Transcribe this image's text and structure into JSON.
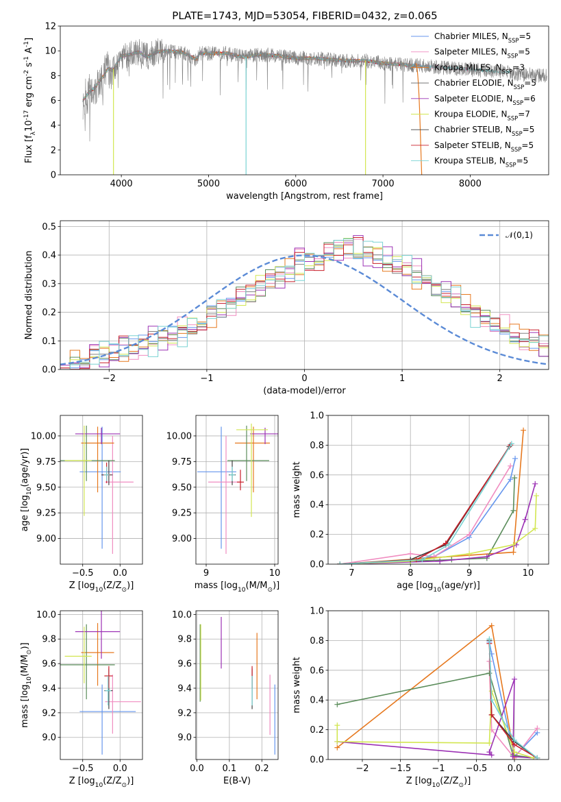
{
  "figure": {
    "title": "PLATE=1743, MJD=53054, FIBERID=0432, z=0.065"
  },
  "series_names": [
    "Chabrier MILES, N$_{SSP}$=5",
    "Salpeter MILES, N$_{SSP}$=5",
    "Kroupa MILES, N$_{SSP}$=3",
    "Chabrier ELODIE, N$_{SSP}$=5",
    "Salpeter ELODIE, N$_{SSP}$=6",
    "Kroupa ELODIE, N$_{SSP}$=7",
    "Chabrier STELIB, N$_{SSP}$=5",
    "Salpeter STELIB, N$_{SSP}$=5",
    "Kroupa STELIB, N$_{SSP}$=5"
  ],
  "chart_data": [
    {
      "id": "spectrum",
      "type": "line",
      "title": "PLATE=1743, MJD=53054, FIBERID=0432, z=0.065",
      "xlabel": "wavelength [Angstrom, rest frame]",
      "ylabel": "Flux [f$_\\lambda$10$^{-17}$ erg cm$^{-2}$ s$^{-1}$ A$^{-1}$]",
      "xlim": [
        3300,
        8900
      ],
      "ylim": [
        0,
        12
      ],
      "xticks": [
        4000,
        5000,
        6000,
        7000,
        8000
      ],
      "yticks": [
        0,
        2,
        4,
        6,
        8,
        10,
        12
      ],
      "grid": false,
      "legend": "top-right",
      "data_color": "#808080",
      "continuum": {
        "x": [
          3560,
          3600,
          3650,
          3700,
          3750,
          3800,
          3850,
          3900,
          3950,
          4000,
          4100,
          4200,
          4300,
          4400,
          4500,
          4700,
          4860,
          4900,
          5000,
          5200,
          5400,
          5600,
          5800,
          6000,
          6200,
          6400,
          6600,
          6800,
          7000,
          7200,
          7400,
          7600,
          7800,
          8000,
          8200,
          8400,
          8600,
          8800
        ],
        "y": [
          6.0,
          6.4,
          6.8,
          7.0,
          7.6,
          8.0,
          8.6,
          8.4,
          9.0,
          9.6,
          9.7,
          9.9,
          9.5,
          9.9,
          10.0,
          9.9,
          9.3,
          9.8,
          9.8,
          9.8,
          9.5,
          9.7,
          9.6,
          9.4,
          9.4,
          9.3,
          9.2,
          9.2,
          9.0,
          8.9,
          8.8,
          8.7,
          8.6,
          8.5,
          8.4,
          8.3,
          8.1,
          8.0
        ]
      },
      "model_end_wavelengths": [
        8300,
        7430,
        7440,
        7420,
        7400,
        8050,
        7390,
        7420,
        8450
      ],
      "spikes": [
        {
          "x": 3910,
          "y": 0
        },
        {
          "x": 5430,
          "y": 0
        },
        {
          "x": 6800,
          "y": 0
        }
      ]
    },
    {
      "id": "residuals",
      "type": "histogram",
      "xlabel": "(data-model)/error",
      "ylabel": "Normed distribution",
      "xlim": [
        -2.5,
        2.5
      ],
      "ylim": [
        0,
        0.52
      ],
      "xticks": [
        -2,
        -1,
        0,
        1,
        2
      ],
      "yticks": [
        0.0,
        0.1,
        0.2,
        0.3,
        0.4,
        0.5
      ],
      "grid": true,
      "legend": "top-right",
      "reference_curve": "$\\mathcal{N}(0,1)$",
      "bin_width": 0.1,
      "bin_start": -2.5,
      "base_values": [
        0.02,
        0.03,
        0.03,
        0.04,
        0.05,
        0.06,
        0.07,
        0.08,
        0.09,
        0.1,
        0.11,
        0.12,
        0.14,
        0.15,
        0.17,
        0.19,
        0.21,
        0.23,
        0.25,
        0.27,
        0.29,
        0.31,
        0.33,
        0.35,
        0.37,
        0.38,
        0.39,
        0.4,
        0.42,
        0.43,
        0.42,
        0.41,
        0.4,
        0.38,
        0.37,
        0.35,
        0.33,
        0.31,
        0.29,
        0.27,
        0.25,
        0.22,
        0.2,
        0.18,
        0.16,
        0.14,
        0.12,
        0.1,
        0.09,
        0.08,
        0.07,
        0.06,
        0.05,
        0.04,
        0.03,
        0.03,
        0.02,
        0.02,
        0.02,
        0.02
      ]
    },
    {
      "id": "z-vs-age",
      "type": "errorbar",
      "xlabel": "Z [log$_{10}$(Z/Z$_\\odot$)]",
      "ylabel": "age  [log$_{10}$(age/yr)]",
      "xlim": [
        -0.8,
        0.3
      ],
      "ylim": [
        8.75,
        10.2
      ],
      "xticks": [
        -0.5,
        0.0
      ],
      "yticks": [
        9.0,
        9.25,
        9.5,
        9.75,
        10.0
      ],
      "grid": true,
      "points": [
        {
          "x": -0.24,
          "y": 9.65,
          "xerr": [
            0.3,
            0.25
          ],
          "yerr": [
            0.75,
            0.44
          ]
        },
        {
          "x": -0.1,
          "y": 9.55,
          "xerr": [
            0.1,
            0.28
          ],
          "yerr": [
            0.7,
            0.45
          ]
        },
        {
          "x": -0.3,
          "y": 9.93,
          "xerr": [
            0.22,
            0.22
          ],
          "yerr": [
            0.48,
            0.16
          ]
        },
        {
          "x": -0.45,
          "y": 9.76,
          "xerr": [
            0.35,
            0.38
          ],
          "yerr": [
            0.2,
            0.34
          ]
        },
        {
          "x": -0.25,
          "y": 10.02,
          "xerr": [
            0.35,
            0.25
          ],
          "yerr": [
            0.1,
            0.06
          ]
        },
        {
          "x": -0.48,
          "y": 9.76,
          "xerr": [
            0.26,
            0.1
          ],
          "yerr": [
            0.54,
            0.34
          ]
        },
        {
          "x": -0.15,
          "y": 9.62,
          "xerr": [
            0.1,
            0.05
          ],
          "yerr": [
            0.1,
            0.14
          ]
        },
        {
          "x": -0.18,
          "y": 9.62,
          "xerr": [
            0.05,
            0.05
          ],
          "yerr": [
            0.08,
            0.12
          ]
        },
        {
          "x": -0.18,
          "y": 9.62,
          "xerr": [
            0.04,
            0.04
          ],
          "yerr": [
            0.06,
            0.08
          ]
        }
      ]
    },
    {
      "id": "mass-vs-age",
      "type": "errorbar",
      "xlabel": "mass [log$_{10}$(M/M$_\\odot$)]",
      "ylabel": "",
      "xlim": [
        8.85,
        10.05
      ],
      "ylim": [
        8.75,
        10.2
      ],
      "xticks": [
        9,
        10
      ],
      "yticks": [
        9.0,
        9.25,
        9.5,
        9.75,
        10.0
      ],
      "grid": true,
      "points": [
        {
          "x": 9.22,
          "y": 9.65,
          "xerr": [
            0.35,
            0.22
          ],
          "yerr": [
            0.75,
            0.44
          ]
        },
        {
          "x": 9.29,
          "y": 9.55,
          "xerr": [
            0.26,
            0.22
          ],
          "yerr": [
            0.7,
            0.45
          ]
        },
        {
          "x": 9.69,
          "y": 9.93,
          "xerr": [
            0.27,
            0.24
          ],
          "yerr": [
            0.48,
            0.16
          ]
        },
        {
          "x": 9.59,
          "y": 9.76,
          "xerr": [
            0.28,
            0.33
          ],
          "yerr": [
            0.2,
            0.34
          ]
        },
        {
          "x": 9.86,
          "y": 10.02,
          "xerr": [
            0.22,
            0.24
          ],
          "yerr": [
            0.1,
            0.06
          ]
        },
        {
          "x": 9.66,
          "y": 10.06,
          "xerr": [
            0.22,
            0.24
          ],
          "yerr": [
            0.85,
            0.06
          ]
        },
        {
          "x": 9.38,
          "y": 9.62,
          "xerr": [
            0.05,
            0.05
          ],
          "yerr": [
            0.1,
            0.14
          ]
        },
        {
          "x": 9.5,
          "y": 9.55,
          "xerr": [
            0.05,
            0.05
          ],
          "yerr": [
            0.08,
            0.12
          ]
        },
        {
          "x": 9.38,
          "y": 9.62,
          "xerr": [
            0.04,
            0.04
          ],
          "yerr": [
            0.06,
            0.08
          ]
        }
      ]
    },
    {
      "id": "age-vs-weight",
      "type": "line",
      "xlabel": "age  [log$_{10}$(age/yr)]",
      "ylabel": "mass weight",
      "xlim": [
        6.6,
        10.35
      ],
      "ylim": [
        0,
        1.0
      ],
      "xticks": [
        7,
        8,
        9,
        10
      ],
      "yticks": [
        0.0,
        0.2,
        0.4,
        0.6,
        0.8,
        1.0
      ],
      "grid": true,
      "series": [
        {
          "x": [
            6.8,
            8.0,
            8.4,
            9.0,
            9.7,
            9.78
          ],
          "y": [
            0.0,
            0.03,
            0.05,
            0.18,
            0.57,
            0.71
          ]
        },
        {
          "x": [
            6.8,
            8.0,
            8.4,
            9.0,
            9.7
          ],
          "y": [
            0.0,
            0.07,
            0.05,
            0.2,
            0.66
          ]
        },
        {
          "x": [
            6.8,
            9.75,
            9.92
          ],
          "y": [
            0.0,
            0.08,
            0.9
          ]
        },
        {
          "x": [
            6.8,
            8.0,
            8.7,
            9.3,
            9.75,
            9.77
          ],
          "y": [
            0.0,
            0.02,
            0.03,
            0.04,
            0.36,
            0.58
          ]
        },
        {
          "x": [
            6.8,
            8.5,
            9.3,
            9.8,
            9.95,
            10.12
          ],
          "y": [
            0.0,
            0.02,
            0.05,
            0.13,
            0.3,
            0.54
          ]
        },
        {
          "x": [
            6.8,
            8.0,
            9.0,
            9.75,
            10.12,
            10.14
          ],
          "y": [
            0.0,
            0.02,
            0.07,
            0.13,
            0.24,
            0.46
          ]
        },
        {
          "x": [
            6.8,
            8.0,
            8.6,
            9.68
          ],
          "y": [
            0.0,
            0.03,
            0.13,
            0.79
          ]
        },
        {
          "x": [
            6.8,
            8.1,
            8.6,
            9.7
          ],
          "y": [
            0.0,
            0.03,
            0.14,
            0.8
          ]
        },
        {
          "x": [
            6.8,
            8.2,
            8.65,
            9.72
          ],
          "y": [
            0.0,
            0.03,
            0.13,
            0.81
          ]
        }
      ]
    },
    {
      "id": "z-vs-mass",
      "type": "errorbar",
      "xlabel": "Z [log$_{10}$(Z/Z$_\\odot$)]",
      "ylabel": "mass [log$_{10}$(M/M$_\\odot$)]",
      "xlim": [
        -0.8,
        0.3
      ],
      "ylim": [
        8.82,
        10.03
      ],
      "xticks": [
        -0.5,
        0.0
      ],
      "yticks": [
        9.0,
        9.2,
        9.4,
        9.6,
        9.8,
        10.0
      ],
      "grid": true,
      "points": [
        {
          "x": -0.24,
          "y": 9.21,
          "xerr": [
            0.3,
            0.45
          ],
          "yerr": [
            0.35,
            0.22
          ]
        },
        {
          "x": -0.1,
          "y": 9.29,
          "xerr": [
            0.1,
            0.38
          ],
          "yerr": [
            0.26,
            0.22
          ]
        },
        {
          "x": -0.3,
          "y": 9.69,
          "xerr": [
            0.22,
            0.22
          ],
          "yerr": [
            0.27,
            0.24
          ]
        },
        {
          "x": -0.45,
          "y": 9.59,
          "xerr": [
            0.35,
            0.38
          ],
          "yerr": [
            0.28,
            0.33
          ]
        },
        {
          "x": -0.25,
          "y": 9.86,
          "xerr": [
            0.35,
            0.25
          ],
          "yerr": [
            0.22,
            0.24
          ]
        },
        {
          "x": -0.48,
          "y": 9.66,
          "xerr": [
            0.26,
            0.1
          ],
          "yerr": [
            0.22,
            0.24
          ]
        },
        {
          "x": -0.15,
          "y": 9.38,
          "xerr": [
            0.06,
            0.05
          ],
          "yerr": [
            0.15,
            0.18
          ]
        },
        {
          "x": -0.15,
          "y": 9.5,
          "xerr": [
            0.06,
            0.05
          ],
          "yerr": [
            0.1,
            0.08
          ]
        },
        {
          "x": -0.16,
          "y": 9.38,
          "xerr": [
            0.04,
            0.04
          ],
          "yerr": [
            0.12,
            0.12
          ]
        }
      ]
    },
    {
      "id": "ebv-vs-mass",
      "type": "errorbar",
      "xlabel": "E(B-V)",
      "ylabel": "",
      "xlim": [
        -0.003,
        0.25
      ],
      "ylim": [
        8.82,
        10.03
      ],
      "xticks": [
        0.0,
        0.1,
        0.2
      ],
      "yticks": [
        9.0,
        9.2,
        9.4,
        9.6,
        9.8,
        10.0
      ],
      "grid": true,
      "points": [
        {
          "x": 0.24,
          "y": 9.21,
          "xerr": [
            0,
            0
          ],
          "yerr": [
            0.35,
            0.22
          ]
        },
        {
          "x": 0.225,
          "y": 9.29,
          "xerr": [
            0,
            0
          ],
          "yerr": [
            0.27,
            0.22
          ]
        },
        {
          "x": 0.185,
          "y": 9.69,
          "xerr": [
            0,
            0
          ],
          "yerr": [
            0.38,
            0.16
          ]
        },
        {
          "x": 0.01,
          "y": 9.59,
          "xerr": [
            0,
            0
          ],
          "yerr": [
            0.3,
            0.33
          ]
        },
        {
          "x": 0.075,
          "y": 9.86,
          "xerr": [
            0,
            0
          ],
          "yerr": [
            0.3,
            0.12
          ]
        },
        {
          "x": 0.012,
          "y": 9.66,
          "xerr": [
            0,
            0
          ],
          "yerr": [
            0.36,
            0.26
          ]
        },
        {
          "x": 0.17,
          "y": 9.38,
          "xerr": [
            0,
            0
          ],
          "yerr": [
            0.15,
            0.18
          ]
        },
        {
          "x": 0.17,
          "y": 9.5,
          "xerr": [
            0,
            0
          ],
          "yerr": [
            0.1,
            0.08
          ]
        },
        {
          "x": 0.17,
          "y": 9.38,
          "xerr": [
            0,
            0
          ],
          "yerr": [
            0.12,
            0.12
          ]
        }
      ]
    },
    {
      "id": "z-vs-weight",
      "type": "line",
      "xlabel": "Z [log$_{10}$(Z/Z$_\\odot$)]",
      "ylabel": "mass weight",
      "xlim": [
        -2.45,
        0.45
      ],
      "ylim": [
        0,
        1.0
      ],
      "xticks": [
        -2.0,
        -1.5,
        -1.0,
        -0.5,
        0.0
      ],
      "yticks": [
        0.0,
        0.2,
        0.4,
        0.6,
        0.8,
        1.0
      ],
      "grid": true,
      "series": [
        {
          "x": [
            -0.33,
            -0.3,
            0.0,
            0.3
          ],
          "y": [
            0.79,
            0.71,
            0.02,
            0.18
          ]
        },
        {
          "x": [
            -0.33,
            -0.3,
            0.0,
            0.3
          ],
          "y": [
            0.66,
            0.2,
            0.01,
            0.21
          ]
        },
        {
          "x": [
            -2.33,
            -0.3,
            0.0
          ],
          "y": [
            0.08,
            0.9,
            0.02
          ]
        },
        {
          "x": [
            -2.33,
            -0.33,
            -0.02,
            0.25
          ],
          "y": [
            0.37,
            0.58,
            0.03,
            0.01
          ]
        },
        {
          "x": [
            -2.33,
            -0.3,
            -0.33,
            0.0,
            -0.02,
            0.25
          ],
          "y": [
            0.12,
            0.03,
            0.05,
            0.54,
            0.02,
            0.01
          ]
        },
        {
          "x": [
            -2.33,
            -2.33,
            -0.33,
            -0.3,
            0.0,
            0.25
          ],
          "y": [
            0.23,
            0.12,
            0.11,
            0.46,
            0.05,
            0.01
          ]
        },
        {
          "x": [
            -0.33,
            -0.3,
            0.0,
            0.3
          ],
          "y": [
            0.8,
            0.3,
            0.12,
            0.01
          ]
        },
        {
          "x": [
            -0.33,
            -0.3,
            0.0,
            0.3
          ],
          "y": [
            0.78,
            0.3,
            0.1,
            0.01
          ]
        },
        {
          "x": [
            -0.33,
            -0.3,
            0.0,
            0.3
          ],
          "y": [
            0.81,
            0.4,
            0.13,
            0.01
          ]
        }
      ]
    }
  ],
  "colors": [
    "#6495ed",
    "#f08cc0",
    "#e6781e",
    "#5a8c5a",
    "#9b30b4",
    "#d2e650",
    "#404040",
    "#c81e28",
    "#78d2d2"
  ],
  "hist_colors": [
    "#6495ed",
    "#f08cc0",
    "#e6781e",
    "#5a8c5a",
    "#9b30b4",
    "#d2e650",
    "#808080",
    "#c81e28",
    "#78d2d2"
  ]
}
